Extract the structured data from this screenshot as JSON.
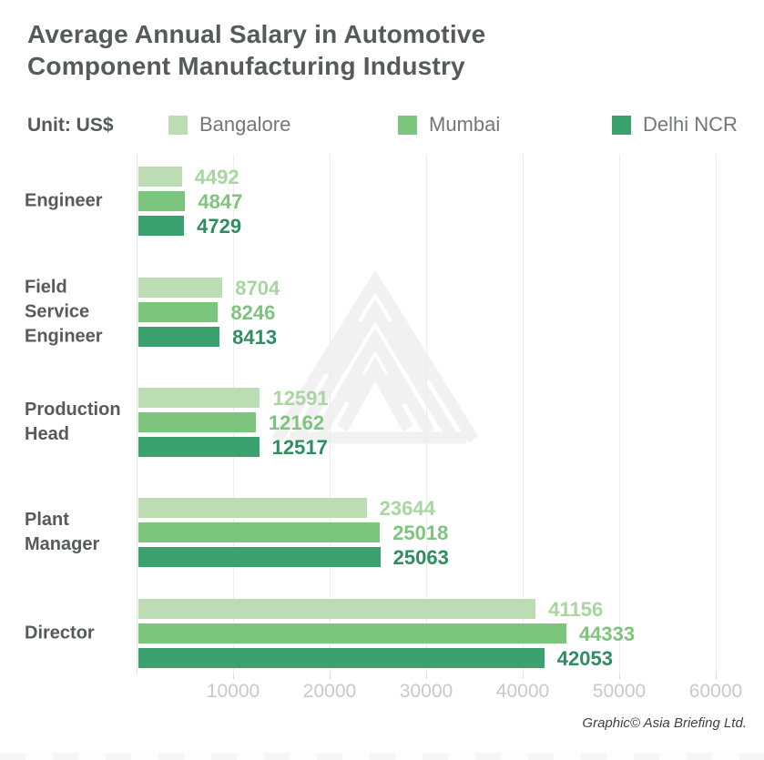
{
  "title": "Average Annual Salary in Automotive\nComponent Manufacturing Industry",
  "unit_label": "Unit: US$",
  "credit": "Graphic© Asia Briefing Ltd.",
  "colors": {
    "title_text": "#58595b",
    "category_text": "#58595b",
    "legend_text": "#75767a",
    "tick_text": "#c8c9cb",
    "gridline": "#ececec",
    "axis_line": "#e2e2e2",
    "watermark": "#f1f1f1"
  },
  "chart_data": {
    "type": "bar",
    "orientation": "horizontal",
    "title": "Average Annual Salary in Automotive Component Manufacturing Industry",
    "unit": "US$",
    "categories": [
      "Engineer",
      "Field Service Engineer",
      "Production Head",
      "Plant Manager",
      "Director"
    ],
    "series": [
      {
        "name": "Bangalore",
        "color": "#bcdcb4",
        "label_color": "#a9d5a0",
        "values": [
          4492,
          8704,
          12591,
          23644,
          41156
        ]
      },
      {
        "name": "Mumbai",
        "color": "#7cc57c",
        "label_color": "#7fc47e",
        "values": [
          4847,
          8246,
          12162,
          25018,
          44333
        ]
      },
      {
        "name": "Delhi NCR",
        "color": "#3ba26f",
        "label_color": "#2e8e62",
        "values": [
          4729,
          8413,
          12517,
          25063,
          42053
        ]
      }
    ],
    "xticks": [
      10000,
      20000,
      30000,
      40000,
      50000,
      60000
    ],
    "xlim": [
      0,
      63000
    ],
    "grid": true,
    "legend_position": "top",
    "value_labels": "end-of-bar"
  },
  "legend_x_positions": [
    185,
    437,
    672
  ],
  "group_y_positions": [
    183,
    305,
    426,
    547,
    658
  ]
}
